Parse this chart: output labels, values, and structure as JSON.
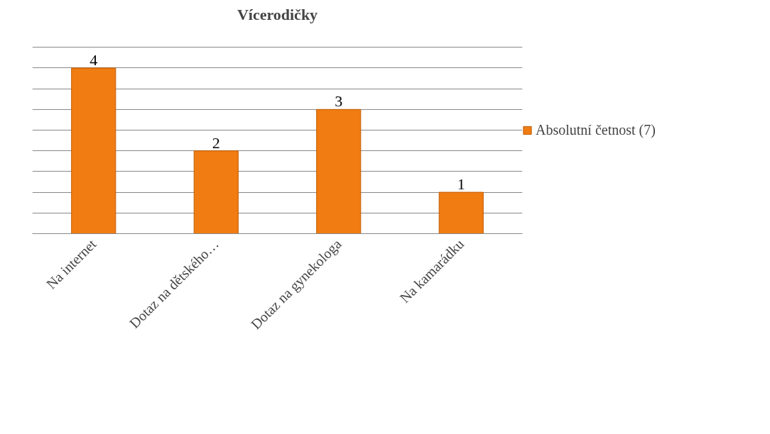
{
  "chart_data": {
    "type": "bar",
    "title": "Vícerodičky",
    "categories": [
      "Na internet",
      "Dotaz na dětského…",
      "Dotaz na gynekologa",
      "Na kamarádku"
    ],
    "series": [
      {
        "name": "Absolutní četnost (7)",
        "color": "#f07c12",
        "values": [
          4,
          2,
          3,
          1
        ]
      }
    ],
    "tick_labels": "x",
    "grid": "y",
    "legend": "right",
    "data_labels": true
  }
}
